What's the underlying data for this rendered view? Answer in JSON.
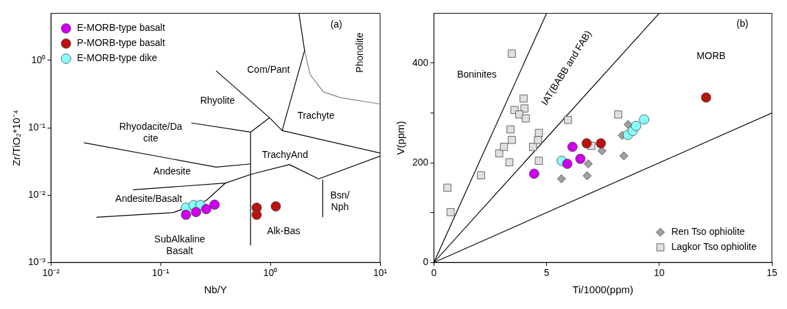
{
  "chart_data": [
    {
      "type": "scatter",
      "xlabel": "Nb/Y",
      "ylabel": "Zr/TiO₂*10⁻⁴",
      "log": "xy",
      "marker": "circle",
      "legend": "top left",
      "xlim": [
        0.01,
        10
      ],
      "ylim": [
        0.001,
        5
      ],
      "xticks": [
        {
          "value": 0.01,
          "label": "10⁻²"
        },
        {
          "value": 0.1,
          "label": "10⁻¹"
        },
        {
          "value": 1,
          "label": "10⁰"
        },
        {
          "value": 10,
          "label": "10¹"
        }
      ],
      "yticks": [
        {
          "value": 0.001,
          "label": "10⁻³"
        },
        {
          "value": 0.01,
          "label": "10⁻²"
        },
        {
          "value": 0.1,
          "label": "10⁻¹"
        },
        {
          "value": 1,
          "label": "10⁰"
        }
      ],
      "series": [
        {
          "name": "E-MORB-type basalt",
          "color": "#cc00ee",
          "x": [
            0.17,
            0.21,
            0.26,
            0.31
          ],
          "values": [
            0.0051,
            0.0056,
            0.0062,
            0.0072
          ]
        },
        {
          "name": "P-MORB-type basalt",
          "color": "#bb1111",
          "x": [
            0.75,
            0.75,
            1.12
          ],
          "values": [
            0.0065,
            0.0051,
            0.0068
          ]
        },
        {
          "name": "E-MORB-type dike",
          "color": "#88ffff",
          "x": [
            0.17,
            0.2,
            0.23
          ],
          "values": [
            0.0065,
            0.0071,
            0.0071
          ]
        },
        {
          "type": "line",
          "marker": "none",
          "color": "#000000",
          "x": [
            0.026,
            0.13,
            0.26,
            0.39,
            0.67,
            1.49,
            2.75,
            10
          ],
          "values": [
            0.0047,
            0.0055,
            0.0083,
            0.0151,
            0.0204,
            0.0284,
            0.0174,
            0.038
          ]
        },
        {
          "type": "line",
          "marker": "none",
          "color": "#000000",
          "x": [
            0.056,
            0.39
          ],
          "values": [
            0.012,
            0.0151
          ]
        },
        {
          "type": "line",
          "marker": "none",
          "color": "#000000",
          "x": [
            0.02,
            0.32,
            0.66
          ],
          "values": [
            0.06,
            0.026,
            0.029
          ]
        },
        {
          "type": "line",
          "marker": "none",
          "color": "#000000",
          "x": [
            0.19,
            0.66,
            0.98
          ],
          "values": [
            0.118,
            0.086,
            0.141
          ]
        },
        {
          "type": "line",
          "marker": "none",
          "color": "#000000",
          "x": [
            0.66,
            0.66
          ],
          "values": [
            0.0018,
            0.086
          ]
        },
        {
          "type": "line",
          "marker": "none",
          "color": "#000000",
          "x": [
            0.32,
            0.98,
            1.28,
            10
          ],
          "values": [
            0.7,
            0.141,
            0.091,
            0.042
          ]
        },
        {
          "type": "line",
          "marker": "none",
          "color": "#000000",
          "x": [
            1.28,
            2.05,
            1.82
          ],
          "values": [
            0.091,
            1.41,
            5
          ]
        },
        {
          "type": "line",
          "marker": "none",
          "color": "#808080",
          "x": [
            2.05,
            2.3,
            3.04,
            4.35,
            10
          ],
          "values": [
            1.41,
            0.62,
            0.34,
            0.28,
            0.225
          ]
        },
        {
          "type": "line",
          "marker": "none",
          "color": "#000000",
          "x": [
            3,
            3
          ],
          "values": [
            0.0047,
            0.017
          ]
        }
      ],
      "annotations": [
        "(a)",
        "Phonolite",
        "Com/Pant",
        "Rhyolite",
        "Trachyte",
        "Rhyodacite/Da\ncite",
        "TrachyAnd",
        "Andesite",
        "Andesite/Basalt",
        "Bsn/\nNph",
        "Alk-Bas",
        "SubAlkaline\nBasalt"
      ]
    },
    {
      "type": "scatter",
      "xlabel": "Ti/1000(ppm)",
      "ylabel": "V(ppm)",
      "legend": "bottom right",
      "xlim": [
        0,
        15
      ],
      "ylim": [
        0,
        500
      ],
      "xticks": [
        0,
        5,
        10,
        15
      ],
      "yticks": [
        0,
        {
          "value": 100,
          "label": null
        },
        200,
        {
          "value": 300,
          "label": null
        },
        400
      ],
      "series": [
        {
          "marker": "circle",
          "color": "#cc00ee",
          "x": [
            4.45,
            6.15,
            5.92,
            6.5
          ],
          "values": [
            178,
            232,
            198,
            208
          ]
        },
        {
          "marker": "circle",
          "color": "#bb1111",
          "x": [
            6.78,
            7.41,
            12.08
          ],
          "values": [
            239,
            239,
            331
          ]
        },
        {
          "marker": "circle",
          "color": "#88ffff",
          "x": [
            5.67,
            8.61,
            8.82,
            8.97,
            9.33
          ],
          "values": [
            204,
            256,
            264,
            274,
            287
          ]
        },
        {
          "name": "Ren Tso ophiolite",
          "marker": "diamond",
          "color": "#a0a0a0",
          "x": [
            5.66,
            6.8,
            6.85,
            7.46,
            8.43,
            8.36,
            8.62
          ],
          "values": [
            168,
            174,
            198,
            224,
            214,
            255,
            277
          ]
        },
        {
          "name": "Lagkor Tso ophiolite",
          "marker": "square",
          "color": "#e0e0e0",
          "x": [
            0.6,
            0.74,
            2.09,
            3.35,
            2.9,
            3.11,
            3.46,
            3.4,
            3.98,
            4.02,
            3.58,
            3.79,
            4.08,
            3.46,
            4.4,
            4.62,
            4.66,
            4.66,
            5.95,
            8.18,
            6.99
          ],
          "values": [
            150,
            101,
            175,
            201,
            219,
            232,
            246,
            267,
            329,
            309,
            306,
            297,
            289,
            419,
            232,
            246,
            260,
            204,
            286,
            297,
            234
          ]
        },
        {
          "type": "line",
          "marker": "none",
          "color": "#000000",
          "x": [
            0,
            5
          ],
          "values": [
            0,
            500
          ]
        },
        {
          "type": "line",
          "marker": "none",
          "color": "#000000",
          "x": [
            0,
            10
          ],
          "values": [
            0,
            500
          ]
        },
        {
          "type": "line",
          "marker": "none",
          "color": "#000000",
          "x": [
            0,
            15
          ],
          "values": [
            0,
            300
          ]
        }
      ],
      "annotations": [
        "(b)",
        "Boninites",
        "IAT(BABB and FAB)",
        "MORB"
      ]
    }
  ]
}
